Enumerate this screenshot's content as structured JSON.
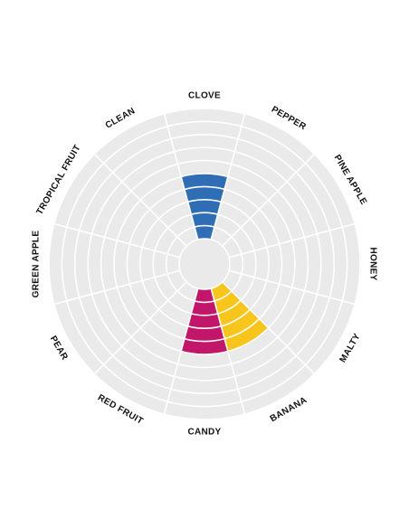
{
  "chart_data": {
    "type": "radial-bar",
    "categories": [
      "CLOVE",
      "PEPPER",
      "PINE APPLE",
      "HONEY",
      "MALTY",
      "BANANA",
      "CANDY",
      "RED FRUIT",
      "PEAR",
      "GREEN APPLE",
      "TROPICAL FRUIT",
      "CLEAN"
    ],
    "values": [
      5,
      0,
      0,
      0,
      0,
      5,
      5,
      0,
      0,
      0,
      0,
      0
    ],
    "scale_max": 10,
    "colors": {
      "background": "#eaeaea",
      "gridline": "#ffffff",
      "CLOVE": "#2f6db5",
      "BANANA": "#f8c51c",
      "CANDY": "#c2166b"
    }
  }
}
